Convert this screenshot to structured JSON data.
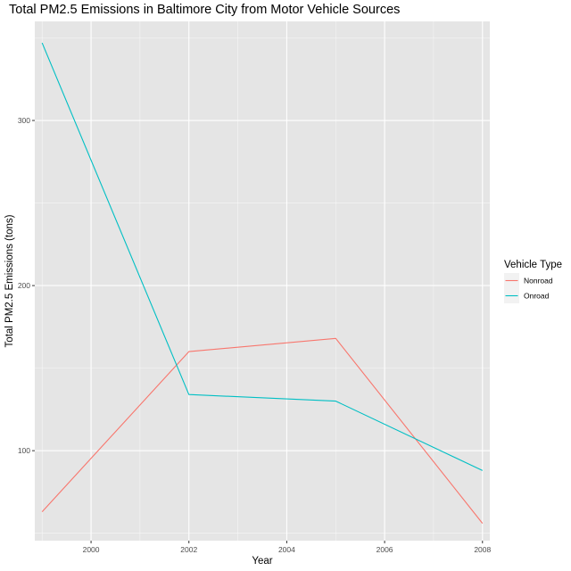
{
  "chart_data": {
    "type": "line",
    "title": "Total PM2.5 Emissions in Baltimore City from Motor Vehicle Sources",
    "xlabel": "Year",
    "ylabel": "Total PM2.5 Emissions (tons)",
    "x": [
      1999,
      2002,
      2005,
      2008
    ],
    "xlim": [
      1998.85,
      2008.15
    ],
    "ylim": [
      45.5,
      360
    ],
    "xticks": [
      2000,
      2002,
      2004,
      2006,
      2008
    ],
    "yticks": [
      100,
      200,
      300
    ],
    "grid": true,
    "legend": {
      "title": "Vehicle Type",
      "position": "right"
    },
    "series": [
      {
        "name": "Nonroad",
        "color": "#F8766D",
        "values": [
          63,
          160,
          168,
          56
        ]
      },
      {
        "name": "Onroad",
        "color": "#00BFC4",
        "values": [
          347,
          134,
          130,
          88
        ]
      }
    ]
  },
  "colors": {
    "panel_background": "#E5E5E5",
    "grid_major": "#FFFFFF",
    "legend_key_background": "#F2F2F2"
  }
}
